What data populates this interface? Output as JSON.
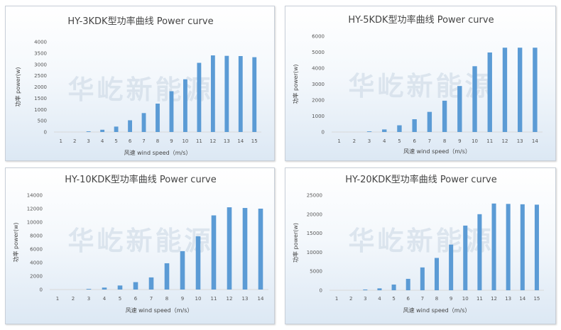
{
  "watermark": "华屹新能源",
  "colors": {
    "bar": "#5b9bd5",
    "axis": "#d9d9d9",
    "text": "#444444"
  },
  "chart_data": [
    {
      "type": "bar",
      "title": "HY-3KDK型功率曲线 Power curve",
      "xlabel": "风速 wind speed（m/s）",
      "ylabel": "功率 power(w)",
      "categories": [
        "1",
        "2",
        "3",
        "4",
        "5",
        "6",
        "7",
        "8",
        "9",
        "10",
        "11",
        "12",
        "13",
        "14",
        "15"
      ],
      "values": [
        0,
        0,
        30,
        100,
        240,
        520,
        840,
        1260,
        1810,
        2340,
        3070,
        3400,
        3380,
        3370,
        3320
      ],
      "ylim": [
        0,
        4000
      ],
      "yticks": [
        "0",
        "500",
        "1000",
        "1500",
        "2000",
        "2500",
        "3000",
        "3500",
        "4000"
      ],
      "grid": false
    },
    {
      "type": "bar",
      "title": "HY-5KDK型功率曲线 Power curve",
      "xlabel": "风速 wind speed（m/s）",
      "ylabel": "功率 power(w)",
      "categories": [
        "1",
        "2",
        "3",
        "4",
        "5",
        "6",
        "7",
        "8",
        "9",
        "10",
        "11",
        "12",
        "13",
        "14"
      ],
      "values": [
        0,
        0,
        40,
        160,
        420,
        800,
        1260,
        1960,
        2880,
        4120,
        4980,
        5280,
        5280,
        5280
      ],
      "ylim": [
        0,
        6000
      ],
      "yticks": [
        "0",
        "1000",
        "2000",
        "3000",
        "4000",
        "5000",
        "6000"
      ],
      "grid": false
    },
    {
      "type": "bar",
      "title": "HY-10KDK型功率曲线 Power curve",
      "xlabel": "风速 wind speed（m/s）",
      "ylabel": "功率 power(w)",
      "categories": [
        "1",
        "2",
        "3",
        "4",
        "5",
        "6",
        "7",
        "8",
        "9",
        "10",
        "11",
        "12",
        "13",
        "14"
      ],
      "values": [
        0,
        0,
        100,
        290,
        600,
        1100,
        1800,
        3900,
        5700,
        7900,
        11000,
        12200,
        12100,
        12000
      ],
      "ylim": [
        0,
        14000
      ],
      "yticks": [
        "0",
        "2000",
        "4000",
        "6000",
        "8000",
        "10000",
        "12000",
        "14000"
      ],
      "grid": false
    },
    {
      "type": "bar",
      "title": "HY-20KDK型功率曲线 Power curve",
      "xlabel": "风速 wind speed（m/s）",
      "ylabel": "功率 power(w)",
      "categories": [
        "1",
        "2",
        "3",
        "4",
        "5",
        "6",
        "7",
        "8",
        "9",
        "10",
        "11",
        "12",
        "13",
        "14",
        "15"
      ],
      "values": [
        0,
        0,
        200,
        500,
        1500,
        3000,
        6000,
        8500,
        12000,
        17000,
        20000,
        22800,
        22700,
        22600,
        22500
      ],
      "ylim": [
        0,
        25000
      ],
      "yticks": [
        "0",
        "5000",
        "10000",
        "15000",
        "20000",
        "25000"
      ],
      "grid": false
    }
  ]
}
